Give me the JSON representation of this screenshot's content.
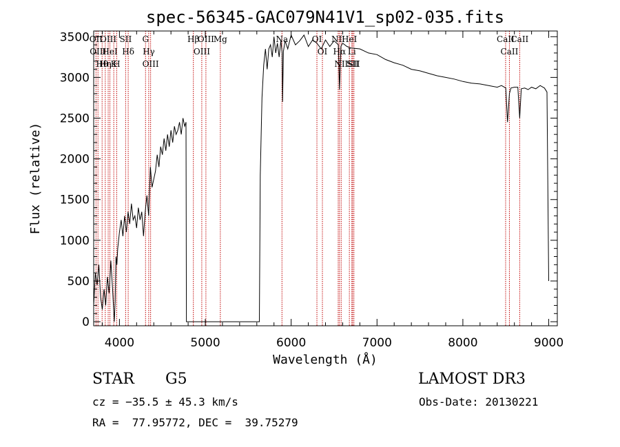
{
  "chart_data": {
    "type": "line",
    "title": "spec-56345-GAC079N41V1_sp02-035.fits",
    "xlabel": "Wavelength (Å)",
    "ylabel": "Flux (relative)",
    "xlim": [
      3700,
      9100
    ],
    "ylim": [
      -50,
      3570
    ],
    "xticks": [
      4000,
      5000,
      6000,
      7000,
      8000,
      9000
    ],
    "yticks": [
      0,
      500,
      1000,
      1500,
      2000,
      2500,
      3000,
      3500
    ],
    "series": [
      {
        "name": "flux",
        "x": [
          3700,
          3720,
          3740,
          3760,
          3780,
          3800,
          3820,
          3840,
          3860,
          3880,
          3900,
          3920,
          3940,
          3950,
          3960,
          3970,
          3980,
          4000,
          4020,
          4040,
          4060,
          4080,
          4100,
          4120,
          4140,
          4160,
          4180,
          4200,
          4220,
          4240,
          4260,
          4280,
          4300,
          4320,
          4340,
          4360,
          4380,
          4400,
          4420,
          4440,
          4460,
          4480,
          4500,
          4520,
          4540,
          4560,
          4580,
          4600,
          4620,
          4640,
          4660,
          4680,
          4700,
          4720,
          4740,
          4760,
          4775,
          4780,
          4800,
          5000,
          5200,
          5400,
          5600,
          5630,
          5640,
          5660,
          5680,
          5700,
          5720,
          5740,
          5760,
          5780,
          5800,
          5820,
          5840,
          5860,
          5880,
          5895,
          5900,
          5910,
          5930,
          5960,
          6000,
          6050,
          6100,
          6150,
          6200,
          6250,
          6300,
          6350,
          6400,
          6450,
          6500,
          6550,
          6563,
          6580,
          6600,
          6650,
          6700,
          6800,
          6900,
          7000,
          7100,
          7200,
          7300,
          7400,
          7500,
          7600,
          7700,
          7800,
          7900,
          8000,
          8100,
          8200,
          8300,
          8400,
          8450,
          8500,
          8520,
          8542,
          8560,
          8600,
          8640,
          8662,
          8680,
          8720,
          8760,
          8800,
          8850,
          8900,
          8950,
          8980,
          9000
        ],
        "values": [
          200,
          600,
          450,
          700,
          300,
          150,
          400,
          200,
          550,
          350,
          750,
          400,
          0,
          250,
          800,
          700,
          900,
          1100,
          1250,
          1050,
          1300,
          1100,
          1350,
          1200,
          1450,
          1250,
          1300,
          1150,
          1400,
          1250,
          1350,
          1050,
          1350,
          1550,
          1300,
          1900,
          1650,
          1750,
          1850,
          2050,
          1900,
          2150,
          2050,
          2250,
          2100,
          2300,
          2150,
          2350,
          2200,
          2400,
          2300,
          2350,
          2450,
          2300,
          2500,
          2400,
          2450,
          0,
          0,
          0,
          0,
          0,
          0,
          0,
          1800,
          2750,
          3150,
          3350,
          3100,
          3350,
          3400,
          3250,
          3500,
          3300,
          3420,
          3250,
          3450,
          3300,
          2700,
          3320,
          3450,
          3350,
          3520,
          3400,
          3450,
          3520,
          3380,
          3460,
          3420,
          3350,
          3460,
          3380,
          3450,
          3400,
          2850,
          3380,
          3420,
          3380,
          3360,
          3350,
          3300,
          3280,
          3220,
          3180,
          3150,
          3100,
          3080,
          3050,
          3020,
          3000,
          2980,
          2950,
          2930,
          2920,
          2900,
          2880,
          2900,
          2870,
          2450,
          2800,
          2870,
          2880,
          2880,
          2500,
          2860,
          2870,
          2850,
          2880,
          2860,
          2900,
          2870,
          2820,
          500
        ]
      }
    ],
    "lines": [
      {
        "x": 3727,
        "label": "OII"
      },
      {
        "x": 3750,
        "label": "OIII"
      },
      {
        "x": 3798,
        "label": "Hθ"
      },
      {
        "x": 3835,
        "label": "Hη"
      },
      {
        "x": 3869,
        "label": "OIII"
      },
      {
        "x": 3889,
        "label": "HeI"
      },
      {
        "x": 3934,
        "label": "K"
      },
      {
        "x": 3968,
        "label": "H"
      },
      {
        "x": 4072,
        "label": "SII"
      },
      {
        "x": 4102,
        "label": "Hδ"
      },
      {
        "x": 4304,
        "label": "G"
      },
      {
        "x": 4341,
        "label": "Hγ"
      },
      {
        "x": 4363,
        "label": "OIII"
      },
      {
        "x": 4861,
        "label": "Hβ"
      },
      {
        "x": 4959,
        "label": "OIII"
      },
      {
        "x": 5007,
        "label": "OIII"
      },
      {
        "x": 5175,
        "label": "Mg"
      },
      {
        "x": 5893,
        "label": "Na"
      },
      {
        "x": 6300,
        "label": "OI"
      },
      {
        "x": 6364,
        "label": "OI"
      },
      {
        "x": 6548,
        "label": "NII"
      },
      {
        "x": 6563,
        "label": "Hα"
      },
      {
        "x": 6583,
        "label": "NII"
      },
      {
        "x": 6678,
        "label": "HeI"
      },
      {
        "x": 6707,
        "label": "Li"
      },
      {
        "x": 6716,
        "label": "SII"
      },
      {
        "x": 6731,
        "label": "SII"
      },
      {
        "x": 8498,
        "label": "CaII"
      },
      {
        "x": 8542,
        "label": "CaII"
      },
      {
        "x": 8662,
        "label": "CaII"
      }
    ],
    "line_color": "#c00000"
  },
  "footer": {
    "class": "STAR",
    "subclass": "G5",
    "survey": "LAMOST DR3",
    "cz": "cz = −35.5 ± 45.3 km/s",
    "obs_date": "Obs-Date: 20130221",
    "radec": "RA =  77.95772, DEC =  39.75279"
  }
}
